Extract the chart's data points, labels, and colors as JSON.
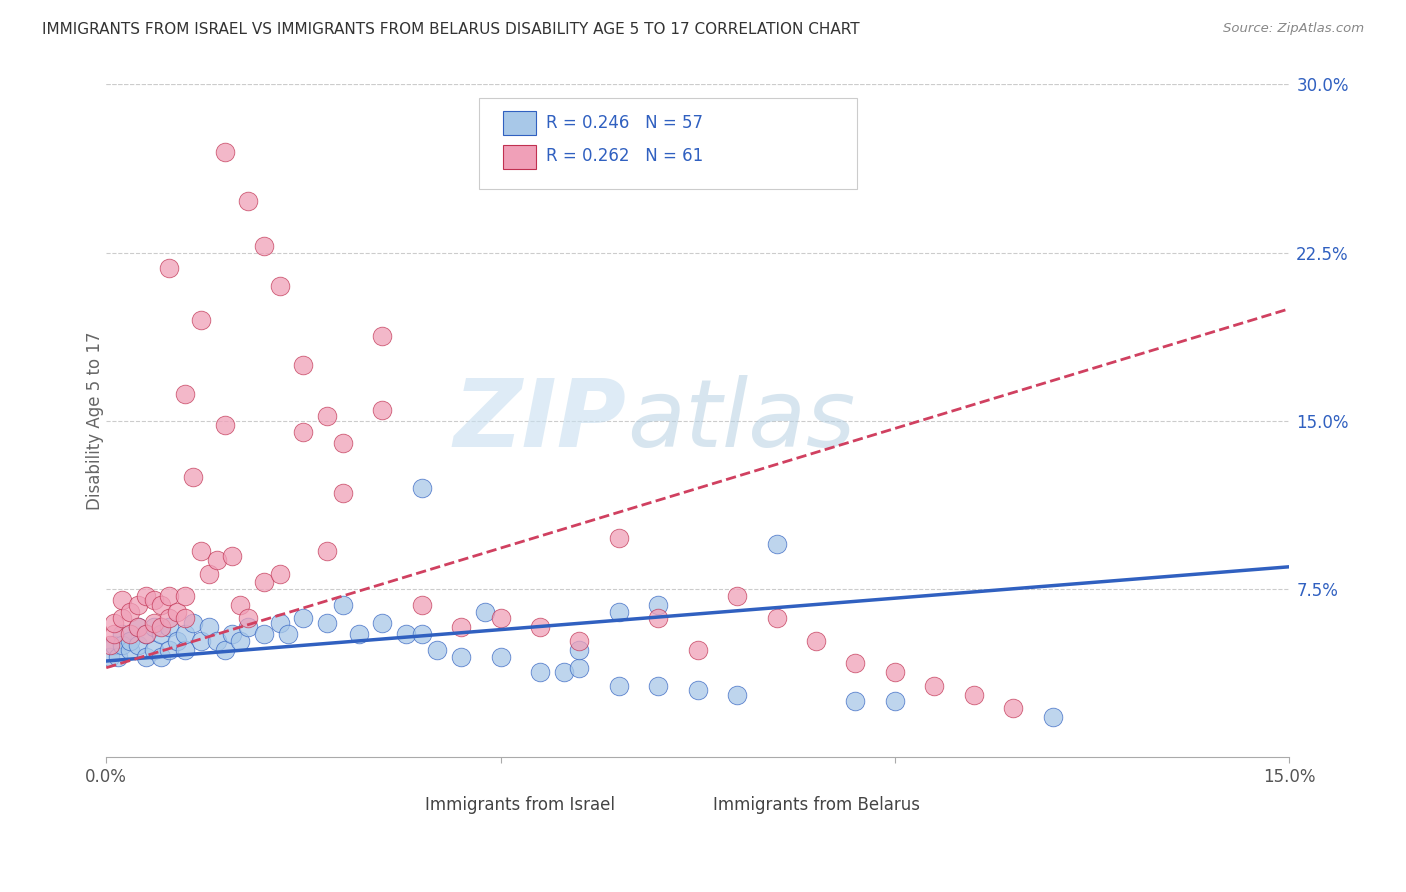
{
  "title": "IMMIGRANTS FROM ISRAEL VS IMMIGRANTS FROM BELARUS DISABILITY AGE 5 TO 17 CORRELATION CHART",
  "source": "Source: ZipAtlas.com",
  "ylabel": "Disability Age 5 to 17",
  "x_min": 0.0,
  "x_max": 0.15,
  "y_min": 0.0,
  "y_max": 0.3,
  "color_israel": "#a8c8e8",
  "color_belarus": "#f0a0b8",
  "trendline_color_israel": "#3060c0",
  "trendline_color_belarus": "#d04060",
  "legend_r1": "R = 0.246",
  "legend_n1": "N = 57",
  "legend_r2": "R = 0.262",
  "legend_n2": "N = 61",
  "legend_label1": "Immigrants from Israel",
  "legend_label2": "Immigrants from Belarus",
  "watermark_zip": "ZIP",
  "watermark_atlas": "atlas",
  "israel_x": [
    0.0005,
    0.001,
    0.0015,
    0.002,
    0.002,
    0.003,
    0.003,
    0.004,
    0.004,
    0.005,
    0.005,
    0.006,
    0.006,
    0.007,
    0.007,
    0.008,
    0.008,
    0.009,
    0.01,
    0.01,
    0.011,
    0.012,
    0.013,
    0.014,
    0.015,
    0.016,
    0.017,
    0.018,
    0.02,
    0.022,
    0.023,
    0.025,
    0.028,
    0.03,
    0.032,
    0.035,
    0.038,
    0.04,
    0.042,
    0.045,
    0.05,
    0.055,
    0.058,
    0.06,
    0.065,
    0.07,
    0.075,
    0.08,
    0.095,
    0.1,
    0.04,
    0.048,
    0.06,
    0.065,
    0.07,
    0.085,
    0.12
  ],
  "israel_y": [
    0.045,
    0.05,
    0.045,
    0.055,
    0.05,
    0.048,
    0.052,
    0.05,
    0.058,
    0.045,
    0.055,
    0.048,
    0.058,
    0.045,
    0.055,
    0.048,
    0.058,
    0.052,
    0.048,
    0.055,
    0.06,
    0.052,
    0.058,
    0.052,
    0.048,
    0.055,
    0.052,
    0.058,
    0.055,
    0.06,
    0.055,
    0.062,
    0.06,
    0.068,
    0.055,
    0.06,
    0.055,
    0.055,
    0.048,
    0.045,
    0.045,
    0.038,
    0.038,
    0.04,
    0.032,
    0.032,
    0.03,
    0.028,
    0.025,
    0.025,
    0.12,
    0.065,
    0.048,
    0.065,
    0.068,
    0.095,
    0.018
  ],
  "belarus_x": [
    0.0005,
    0.001,
    0.001,
    0.002,
    0.002,
    0.003,
    0.003,
    0.004,
    0.004,
    0.005,
    0.005,
    0.006,
    0.006,
    0.007,
    0.007,
    0.008,
    0.008,
    0.009,
    0.01,
    0.01,
    0.011,
    0.012,
    0.013,
    0.014,
    0.015,
    0.016,
    0.017,
    0.018,
    0.02,
    0.022,
    0.025,
    0.028,
    0.03,
    0.035,
    0.04,
    0.045,
    0.05,
    0.055,
    0.06,
    0.065,
    0.07,
    0.075,
    0.08,
    0.085,
    0.09,
    0.095,
    0.1,
    0.105,
    0.11,
    0.115,
    0.015,
    0.018,
    0.02,
    0.022,
    0.025,
    0.028,
    0.03,
    0.035,
    0.008,
    0.012,
    0.01
  ],
  "belarus_y": [
    0.05,
    0.055,
    0.06,
    0.062,
    0.07,
    0.055,
    0.065,
    0.058,
    0.068,
    0.055,
    0.072,
    0.06,
    0.07,
    0.058,
    0.068,
    0.062,
    0.072,
    0.065,
    0.062,
    0.072,
    0.125,
    0.092,
    0.082,
    0.088,
    0.148,
    0.09,
    0.068,
    0.062,
    0.078,
    0.082,
    0.145,
    0.092,
    0.118,
    0.155,
    0.068,
    0.058,
    0.062,
    0.058,
    0.052,
    0.098,
    0.062,
    0.048,
    0.072,
    0.062,
    0.052,
    0.042,
    0.038,
    0.032,
    0.028,
    0.022,
    0.27,
    0.248,
    0.228,
    0.21,
    0.175,
    0.152,
    0.14,
    0.188,
    0.218,
    0.195,
    0.162
  ]
}
